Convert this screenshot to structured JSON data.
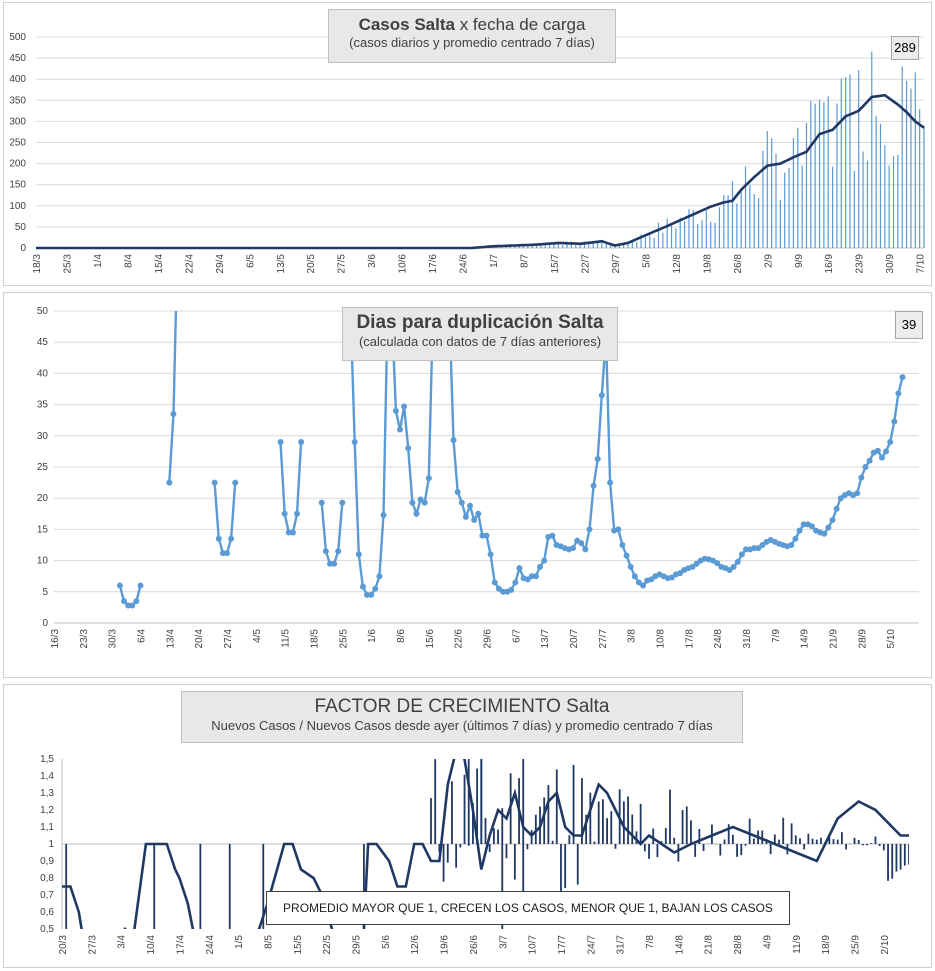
{
  "charts": [
    {
      "id": "casos",
      "title": "Casos Salta",
      "title_suffix": "x fecha de carga",
      "subtitle": "(casos diarios y promedio  centrado 7 días)",
      "badge": "289",
      "colors": {
        "bars": "#5b9bd5",
        "line": "#1f3864"
      }
    },
    {
      "id": "duplicacion",
      "title": "Dias para duplicación Salta",
      "subtitle": "(calculada con datos de 7 días anteriores)",
      "badge": "39",
      "colors": {
        "line": "#5b9bd5"
      }
    },
    {
      "id": "factor",
      "title": "FACTOR DE CRECIMIENTO",
      "title_suffix": "Salta",
      "subtitle": "Nuevos Casos  / Nuevos Casos desde ayer (últimos 7 días) y promedio  centrado 7 días",
      "note": "PROMEDIO MAYOR QUE 1, CRECEN LOS CASOS, MENOR QUE 1, BAJAN LOS CASOS",
      "colors": {
        "bars": "#1f3864",
        "line": "#1f3864"
      }
    }
  ],
  "chart_data": [
    {
      "type": "bar",
      "title": "Casos Salta x fecha de carga",
      "subtitle": "(casos diarios y promedio  centrado 7 días)",
      "ylim": [
        0,
        500
      ],
      "yticks": [
        0,
        50,
        100,
        150,
        200,
        250,
        300,
        350,
        400,
        450,
        500
      ],
      "xticks": [
        "18/3",
        "25/3",
        "1/4",
        "8/4",
        "15/4",
        "22/4",
        "29/4",
        "6/5",
        "13/5",
        "20/5",
        "27/5",
        "3/6",
        "10/6",
        "17/6",
        "24/6",
        "1/7",
        "8/7",
        "15/7",
        "22/7",
        "29/7",
        "5/8",
        "12/8",
        "19/8",
        "26/8",
        "2/9",
        "9/9",
        "16/9",
        "23/9",
        "30/9",
        "7/10"
      ],
      "grid": true,
      "last_value": 289,
      "series": [
        {
          "kind": "line",
          "x_days": [
            0,
            100,
            105,
            110,
            115,
            120,
            125,
            130,
            133,
            136,
            140,
            145,
            150,
            155,
            158,
            160,
            162,
            165,
            168,
            171,
            174,
            177,
            180,
            183,
            186,
            189,
            192,
            195,
            198,
            200,
            202,
            204
          ],
          "y": [
            0,
            0,
            4,
            6,
            8,
            12,
            10,
            16,
            6,
            12,
            30,
            52,
            75,
            98,
            108,
            112,
            138,
            168,
            195,
            200,
            215,
            228,
            270,
            280,
            312,
            325,
            358,
            362,
            340,
            322,
            300,
            285
          ]
        }
      ]
    },
    {
      "type": "line",
      "title": "Dias para duplicación Salta",
      "subtitle": "(calculada con datos de 7 días anteriores)",
      "ylim": [
        0,
        50
      ],
      "yticks": [
        0,
        5,
        10,
        15,
        20,
        25,
        30,
        35,
        40,
        45,
        50
      ],
      "xticks": [
        "16/3",
        "23/3",
        "30/3",
        "6/4",
        "13/4",
        "20/4",
        "27/4",
        "4/5",
        "11/5",
        "18/5",
        "25/5",
        "1/6",
        "8/6",
        "15/6",
        "22/6",
        "29/6",
        "6/7",
        "13/7",
        "20/7",
        "27/7",
        "3/8",
        "10/8",
        "17/8",
        "24/8",
        "31/8",
        "7/9",
        "14/9",
        "21/9",
        "28/9",
        "5/10"
      ],
      "grid": true,
      "last_value": 39
    },
    {
      "type": "bar",
      "title": "FACTOR DE CRECIMIENTO Salta",
      "subtitle": "Nuevos Casos  / Nuevos Casos desde ayer (últimos 7 días) y promedio  centrado 7 días",
      "ylim": [
        0.5,
        1.5
      ],
      "baseline": 1,
      "yticks": [
        "0,5",
        "0,6",
        "0,7",
        "0,8",
        "0,9",
        "1",
        "1,1",
        "1,2",
        "1,3",
        "1,4",
        "1,5"
      ],
      "xticks": [
        "20/3",
        "27/3",
        "3/4",
        "10/4",
        "17/4",
        "24/4",
        "1/5",
        "8/5",
        "15/5",
        "22/5",
        "29/5",
        "5/6",
        "12/6",
        "19/6",
        "26/6",
        "3/7",
        "10/7",
        "17/7",
        "24/7",
        "31/7",
        "7/8",
        "14/8",
        "21/8",
        "28/8",
        "4/9",
        "11/9",
        "18/9",
        "25/9",
        "2/10"
      ],
      "grid": false
    }
  ]
}
